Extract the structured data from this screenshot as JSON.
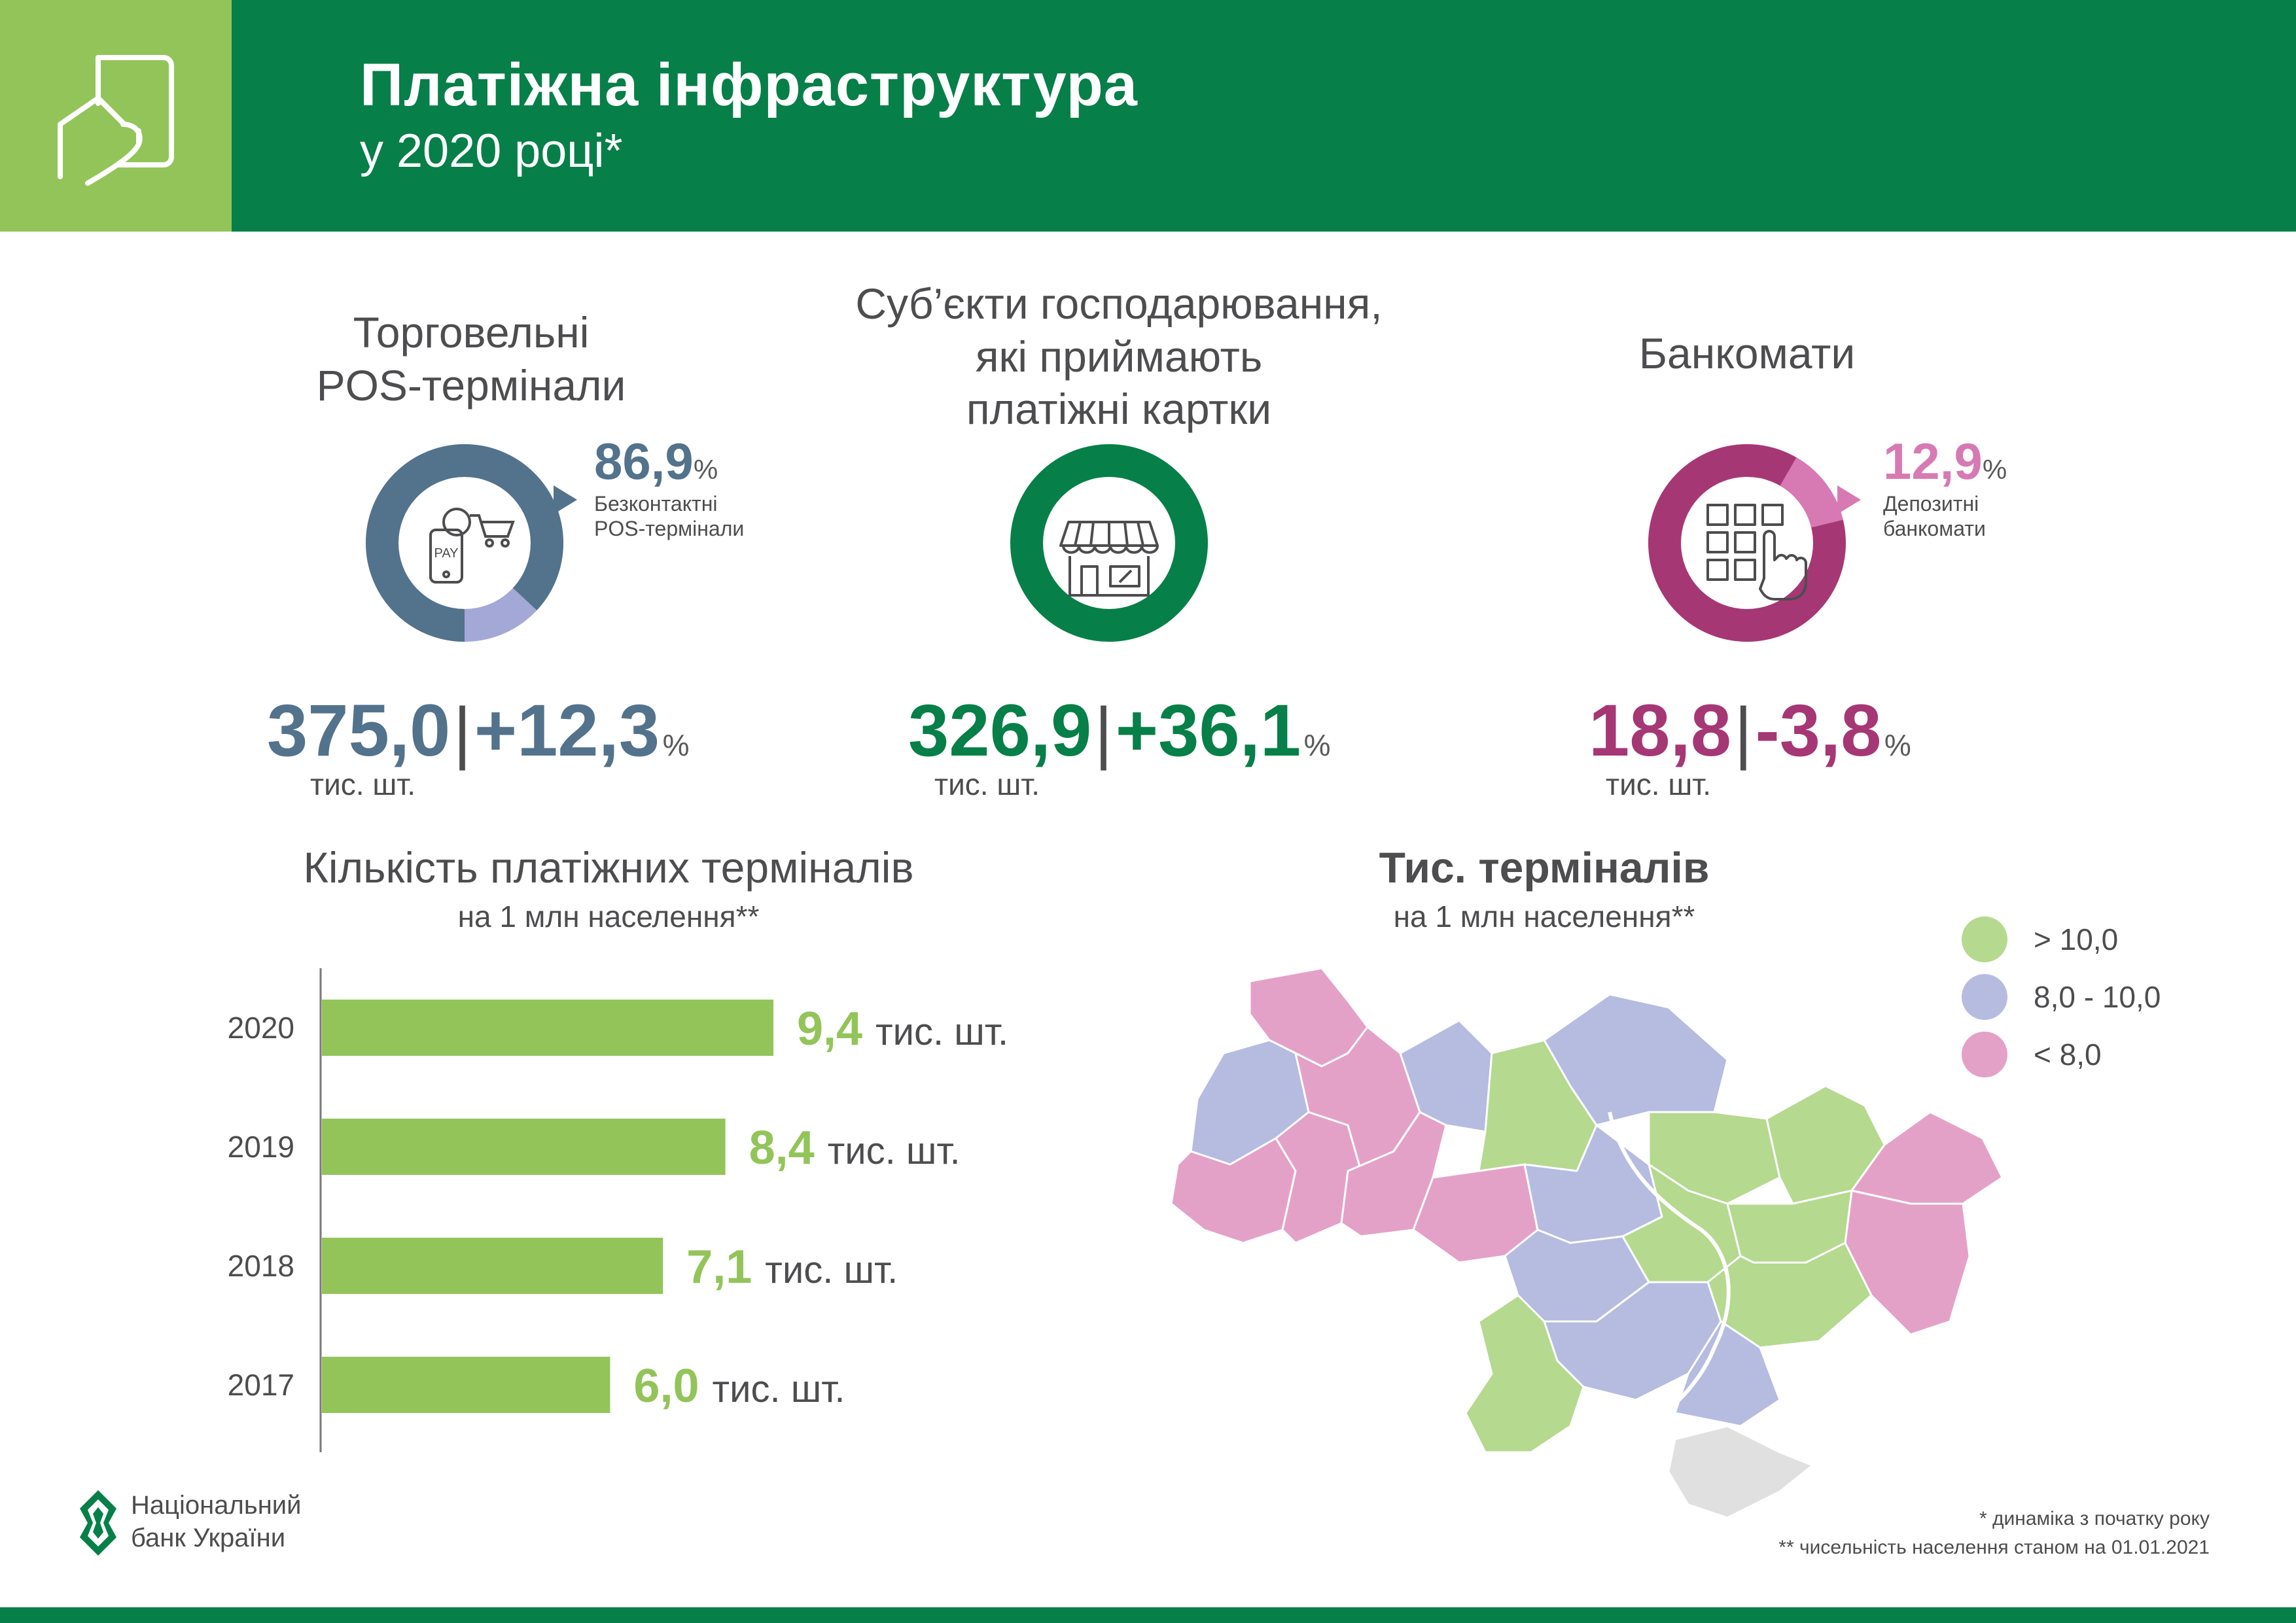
{
  "header": {
    "title": "Платіжна інфраструктура",
    "subtitle": "у 2020 році*",
    "icon": "card-hand-icon"
  },
  "kpis": {
    "pos": {
      "title_line1": "Торговельні",
      "title_line2": "POS-термінали",
      "share_value": "86,9",
      "share_unit": "%",
      "share_label_line1": "Безконтактні",
      "share_label_line2": "POS-термінали",
      "share_fraction": 0.869,
      "color": "#53728c",
      "share_color": "#a3a8d6",
      "value": "375,0",
      "separator": "|",
      "change": "+12,3",
      "change_unit": "%",
      "unit": "тис. шт.",
      "icon": "phone-pay-cart-icon"
    },
    "merchants": {
      "title_line1": "Суб’єкти господарювання,",
      "title_line2": "які приймають",
      "title_line3": "платіжні картки",
      "color": "#077f48",
      "value": "326,9",
      "separator": "|",
      "change": "+36,1",
      "change_unit": "%",
      "unit": "тис. шт.",
      "icon": "shop-awning-icon"
    },
    "atm": {
      "title": "Банкомати",
      "share_value": "12,9",
      "share_unit": "%",
      "share_label_line1": "Депозитні",
      "share_label_line2": "банкомати",
      "share_fraction": 0.129,
      "color": "#a63775",
      "share_color": "#d77ab4",
      "value": "18,8",
      "separator": "|",
      "change": "-3,8",
      "change_unit": "%",
      "unit": "тис. шт.",
      "icon": "atm-keypad-hand-icon"
    }
  },
  "bar_section": {
    "title": "Кількість платіжних терміналів",
    "subtitle": "на 1 млн населення**"
  },
  "map_section": {
    "title": "Тис. терміналів",
    "subtitle": "на 1 млн населення**",
    "legend": [
      {
        "label": "> 10,0",
        "color": "#b5d98f"
      },
      {
        "label": "8,0 - 10,0",
        "color": "#b6bbe0"
      },
      {
        "label": "< 8,0",
        "color": "#e4a1c8"
      }
    ],
    "no_data_color": "#e0e0e0"
  },
  "chart_data": {
    "type": "bar",
    "orientation": "horizontal",
    "categories": [
      "2020",
      "2019",
      "2018",
      "2017"
    ],
    "values": [
      9.4,
      8.4,
      7.1,
      6.0
    ],
    "value_labels": [
      "9,4",
      "8,4",
      "7,1",
      "6,0"
    ],
    "unit_label": "тис. шт.",
    "title": "Кількість платіжних терміналів",
    "subtitle": "на 1 млн населення**",
    "color": "#93c459"
  },
  "footnotes": {
    "note1": "* динаміка з початку року",
    "note2": "** чисельність населення станом на 01.01.2021"
  },
  "logo": {
    "line1": "Національний",
    "line2": "банк України"
  }
}
